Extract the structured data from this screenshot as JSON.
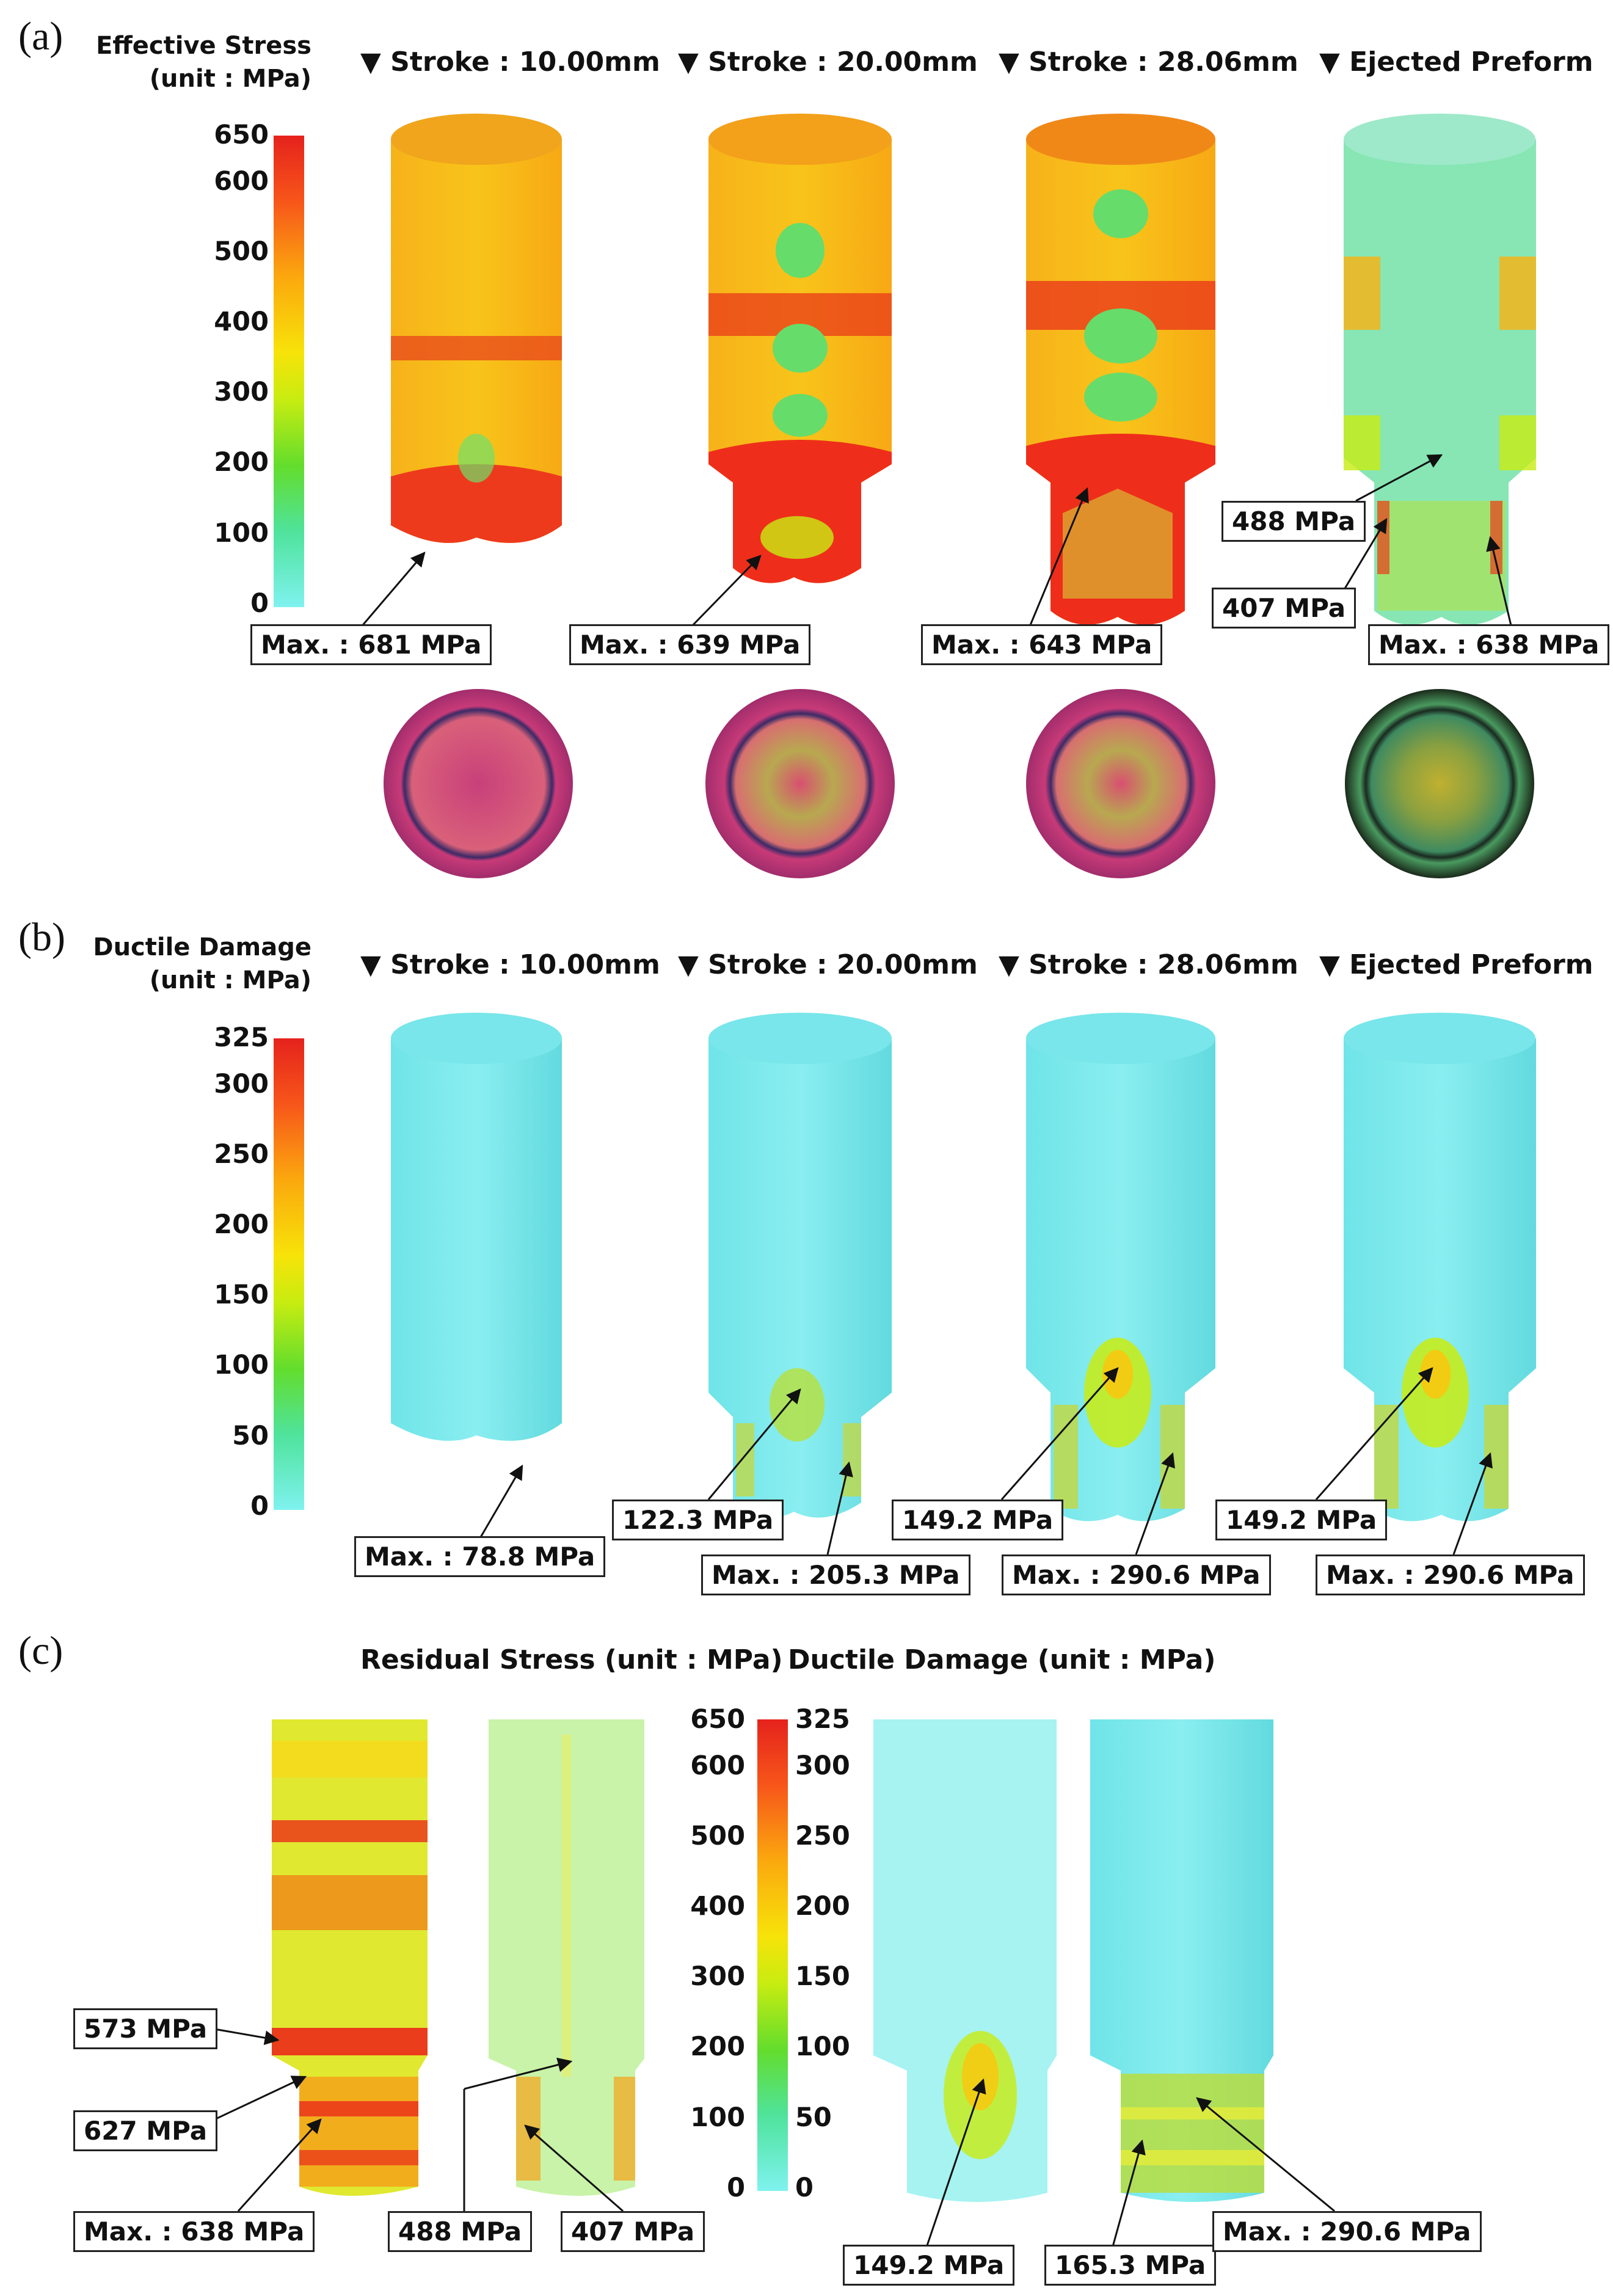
{
  "panels": {
    "a": {
      "letter": "(a)",
      "legend_title": [
        "Effective Stress",
        "(unit : MPa)"
      ],
      "ticks": [
        "650",
        "600",
        "500",
        "400",
        "300",
        "200",
        "100",
        "0"
      ],
      "columns": [
        "▼ Stroke : 10.00mm",
        "▼ Stroke : 20.00mm",
        "▼ Stroke : 28.06mm",
        "▼ Ejected Preform"
      ],
      "callouts": [
        "Max. : 681 MPa",
        "Max. : 639 MPa",
        "Max. : 643 MPa",
        "488 MPa",
        "407 MPa",
        "Max. : 638 MPa"
      ]
    },
    "b": {
      "letter": "(b)",
      "legend_title": [
        "Ductile Damage",
        "(unit : MPa)"
      ],
      "ticks": [
        "325",
        "300",
        "250",
        "200",
        "150",
        "100",
        "50",
        "0"
      ],
      "columns": [
        "▼ Stroke : 10.00mm",
        "▼ Stroke : 20.00mm",
        "▼ Stroke : 28.06mm",
        "▼ Ejected Preform"
      ],
      "callouts": [
        "Max. : 78.8 MPa",
        "122.3 MPa",
        "Max. : 205.3 MPa",
        "149.2 MPa",
        "Max. : 290.6 MPa",
        "149.2 MPa",
        "Max. : 290.6 MPa"
      ]
    },
    "c": {
      "letter": "(c)",
      "title_left": "Residual Stress  (unit : MPa)",
      "title_right": "Ductile Damage (unit : MPa)",
      "ticks_stress": [
        "650",
        "600",
        "500",
        "400",
        "300",
        "200",
        "100",
        "0"
      ],
      "ticks_damage": [
        "325",
        "300",
        "250",
        "200",
        "150",
        "100",
        "50",
        "0"
      ],
      "callouts": [
        "573 MPa",
        "627 MPa",
        "Max. : 638 MPa",
        "488 MPa",
        "407 MPa",
        "149.2 MPa",
        "165.3 MPa",
        "Max. : 290.6 MPa"
      ]
    }
  },
  "colors": {
    "cyan": "#7ff2ef",
    "green": "#4fe39c",
    "yellow": "#f7e309",
    "orange": "#fba80e",
    "red": "#e5221c",
    "magenta": "#b8336e"
  }
}
